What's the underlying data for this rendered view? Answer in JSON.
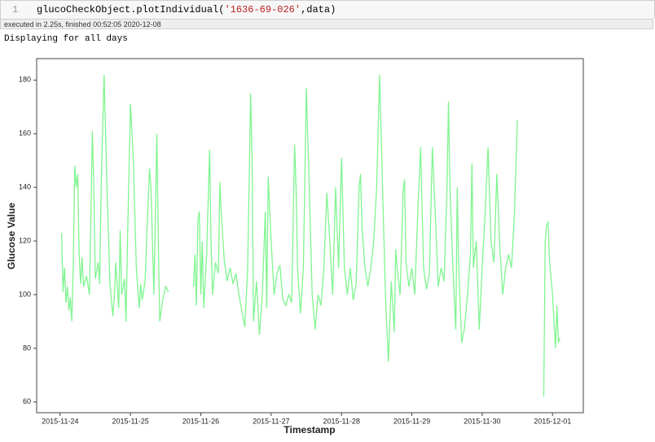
{
  "cell": {
    "prompt": "1",
    "code": [
      "glucoCheckObject.plotIndividual(",
      "'1636-69-026'",
      ",data)"
    ],
    "status": "executed in 2.25s, finished 00:52:05 2020-12-08"
  },
  "output": {
    "text": "Displaying for all days"
  },
  "chart_data": {
    "type": "line",
    "xlabel": "Timestamp",
    "ylabel": "Glucose Value",
    "color": "#80f590",
    "xlim": [
      "2015-11-23 16:00",
      "2015-12-01 10:30"
    ],
    "xticks": [
      "2015-11-24",
      "2015-11-25",
      "2015-11-26",
      "2015-11-27",
      "2015-11-28",
      "2015-11-29",
      "2015-11-30",
      "2015-12-01"
    ],
    "ylim": [
      56,
      188
    ],
    "yticks": [
      60,
      80,
      100,
      120,
      140,
      160,
      180
    ],
    "x": [
      "2015-11-24 00:30",
      "2015-11-24 01:00",
      "2015-11-24 01:30",
      "2015-11-24 02:00",
      "2015-11-24 02:30",
      "2015-11-24 03:00",
      "2015-11-24 03:30",
      "2015-11-24 04:00",
      "2015-11-24 04:30",
      "2015-11-24 05:00",
      "2015-11-24 05:30",
      "2015-11-24 06:00",
      "2015-11-24 06:30",
      "2015-11-24 07:00",
      "2015-11-24 07:30",
      "2015-11-24 08:00",
      "2015-11-24 09:00",
      "2015-11-24 10:00",
      "2015-11-24 10:30",
      "2015-11-24 11:00",
      "2015-11-24 11:30",
      "2015-11-24 12:00",
      "2015-11-24 13:00",
      "2015-11-24 13:30",
      "2015-11-24 14:00",
      "2015-11-24 15:00",
      "2015-11-24 16:00",
      "2015-11-24 17:00",
      "2015-11-24 18:00",
      "2015-11-24 18:30",
      "2015-11-24 19:00",
      "2015-11-24 20:00",
      "2015-11-24 20:30",
      "2015-11-24 21:00",
      "2015-11-24 22:00",
      "2015-11-24 22:30",
      "2015-11-24 23:00",
      "2015-11-25 00:00",
      "2015-11-25 01:00",
      "2015-11-25 02:00",
      "2015-11-25 03:00",
      "2015-11-25 03:30",
      "2015-11-25 04:00",
      "2015-11-25 05:00",
      "2015-11-25 05:30",
      "2015-11-25 06:30",
      "2015-11-25 07:00",
      "2015-11-25 08:00",
      "2015-11-25 09:00",
      "2015-11-25 09:30",
      "2015-11-25 10:00",
      "2015-11-25 11:00",
      "2015-11-25 12:00",
      "2015-11-25 13:00",
      "2015-11-25 17:00",
      "2015-11-25 21:30",
      "2015-11-25 22:00",
      "2015-11-25 22:30",
      "2015-11-25 23:00",
      "2015-11-25 23:30",
      "2015-11-26 00:00",
      "2015-11-26 00:30",
      "2015-11-26 01:00",
      "2015-11-26 02:00",
      "2015-11-26 03:00",
      "2015-11-26 03:30",
      "2015-11-26 04:00",
      "2015-11-26 05:00",
      "2015-11-26 06:00",
      "2015-11-26 06:30",
      "2015-11-26 07:00",
      "2015-11-26 08:00",
      "2015-11-26 09:00",
      "2015-11-26 10:00",
      "2015-11-26 11:00",
      "2015-11-26 12:00",
      "2015-11-26 13:00",
      "2015-11-26 14:00",
      "2015-11-26 15:00",
      "2015-11-26 16:00",
      "2015-11-26 17:00",
      "2015-11-26 17:30",
      "2015-11-26 18:00",
      "2015-11-26 19:00",
      "2015-11-26 20:00",
      "2015-11-26 21:00",
      "2015-11-26 22:00",
      "2015-11-26 22:30",
      "2015-11-26 23:00",
      "2015-11-27 00:00",
      "2015-11-27 01:00",
      "2015-11-27 02:00",
      "2015-11-27 03:00",
      "2015-11-27 04:00",
      "2015-11-27 05:00",
      "2015-11-27 06:00",
      "2015-11-27 07:00",
      "2015-11-27 08:00",
      "2015-11-27 08:30",
      "2015-11-27 09:00",
      "2015-11-27 10:00",
      "2015-11-27 11:00",
      "2015-11-27 12:00",
      "2015-11-27 13:00",
      "2015-11-27 14:00",
      "2015-11-27 15:00",
      "2015-11-27 16:00",
      "2015-11-27 17:00",
      "2015-11-27 18:00",
      "2015-11-27 19:00",
      "2015-11-27 20:00",
      "2015-11-27 21:00",
      "2015-11-27 22:00",
      "2015-11-27 23:00",
      "2015-11-28 00:00",
      "2015-11-28 01:00",
      "2015-11-28 02:00",
      "2015-11-28 03:00",
      "2015-11-28 04:00",
      "2015-11-28 05:00",
      "2015-11-28 06:00",
      "2015-11-28 06:30",
      "2015-11-28 07:00",
      "2015-11-28 08:00",
      "2015-11-28 09:00",
      "2015-11-28 10:00",
      "2015-11-28 11:00",
      "2015-11-28 12:00",
      "2015-11-28 13:00",
      "2015-11-28 14:00",
      "2015-11-28 15:00",
      "2015-11-28 16:00",
      "2015-11-28 17:00",
      "2015-11-28 18:00",
      "2015-11-28 18:30",
      "2015-11-28 19:00",
      "2015-11-28 20:00",
      "2015-11-28 21:00",
      "2015-11-28 21:30",
      "2015-11-28 22:00",
      "2015-11-28 23:00",
      "2015-11-29 00:00",
      "2015-11-29 01:00",
      "2015-11-29 02:00",
      "2015-11-29 03:00",
      "2015-11-29 04:00",
      "2015-11-29 05:00",
      "2015-11-29 06:00",
      "2015-11-29 07:00",
      "2015-11-29 08:00",
      "2015-11-29 09:00",
      "2015-11-29 10:00",
      "2015-11-29 11:00",
      "2015-11-29 12:00",
      "2015-11-29 12:30",
      "2015-11-29 13:00",
      "2015-11-29 14:00",
      "2015-11-29 15:00",
      "2015-11-29 15:30",
      "2015-11-29 16:00",
      "2015-11-29 17:00",
      "2015-11-29 18:00",
      "2015-11-29 19:00",
      "2015-11-29 20:00",
      "2015-11-29 20:30",
      "2015-11-29 21:00",
      "2015-11-29 22:00",
      "2015-11-29 23:00",
      "2015-11-30 00:00",
      "2015-11-30 01:00",
      "2015-11-30 02:00",
      "2015-11-30 03:00",
      "2015-11-30 04:00",
      "2015-11-30 05:00",
      "2015-11-30 06:00",
      "2015-11-30 07:00",
      "2015-11-30 08:00",
      "2015-11-30 09:00",
      "2015-11-30 10:00",
      "2015-11-30 11:00",
      "2015-11-30 12:00",
      "2015-11-30 16:00",
      "2015-11-30 21:00",
      "2015-11-30 21:30",
      "2015-11-30 22:00",
      "2015-11-30 22:30",
      "2015-11-30 23:00",
      "2015-12-01 00:00",
      "2015-12-01 01:00",
      "2015-12-01 01:30",
      "2015-12-01 02:00",
      "2015-12-01 02:30"
    ],
    "values": [
      123,
      101,
      110,
      97,
      103,
      94,
      99,
      90,
      112,
      148,
      140,
      145,
      115,
      104,
      114,
      103,
      107,
      100,
      130,
      161,
      140,
      106,
      112,
      104,
      140,
      182,
      140,
      104,
      92,
      99,
      112,
      95,
      124,
      100,
      106,
      90,
      120,
      171,
      150,
      110,
      95,
      104,
      98,
      105,
      120,
      147,
      140,
      100,
      160,
      120,
      90,
      98,
      103,
      101,
      null,
      103,
      115,
      96,
      128,
      131,
      100,
      120,
      95,
      115,
      154,
      120,
      100,
      112,
      108,
      142,
      130,
      113,
      105,
      110,
      104,
      108,
      100,
      94,
      88,
      110,
      175,
      150,
      90,
      105,
      85,
      100,
      131,
      95,
      144,
      120,
      100,
      108,
      111,
      98,
      96,
      100,
      97,
      156,
      140,
      110,
      93,
      110,
      177,
      140,
      100,
      87,
      100,
      96,
      110,
      138,
      120,
      100,
      140,
      110,
      151,
      110,
      100,
      110,
      98,
      104,
      140,
      145,
      125,
      110,
      103,
      110,
      120,
      140,
      182,
      140,
      100,
      75,
      105,
      86,
      117,
      110,
      100,
      138,
      143,
      112,
      103,
      110,
      100,
      130,
      155,
      110,
      102,
      108,
      155,
      130,
      103,
      110,
      105,
      140,
      172,
      140,
      110,
      87,
      140,
      110,
      82,
      88,
      100,
      115,
      149,
      110,
      120,
      87,
      110,
      130,
      155,
      120,
      112,
      145,
      118,
      100,
      110,
      115,
      110,
      130,
      165,
      null,
      62,
      120,
      126,
      127,
      112,
      100,
      80,
      96,
      82,
      84
    ]
  }
}
